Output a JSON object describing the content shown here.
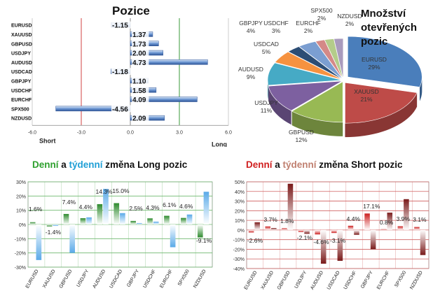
{
  "chart_data": [
    {
      "type": "bar",
      "orientation": "horizontal",
      "title": "Pozice",
      "categories": [
        "EURUSD",
        "XAUUSD",
        "GBPUSD",
        "USDJPY",
        "AUDUSD",
        "USDCAD",
        "GBPJPY",
        "USDCHF",
        "EURCHF",
        "SPX500",
        "NZDUSD"
      ],
      "values": [
        -1.15,
        1.37,
        1.73,
        2.0,
        4.73,
        -1.18,
        1.1,
        1.58,
        4.09,
        -4.56,
        2.09
      ],
      "value_labels": [
        "-1.15",
        "1.37",
        "1.73",
        "2.00",
        "4.73",
        "-1.18",
        "1.10",
        "1.58",
        "4.09",
        "-4.56",
        "2.09"
      ],
      "xlim": [
        -6,
        6
      ],
      "xticks": [
        "-6.0",
        "-3.0",
        "0.0",
        "3.0",
        "6.0"
      ],
      "xtick_values": [
        -6,
        -3,
        0,
        3,
        6
      ],
      "left_label": "Short",
      "right_label": "Long",
      "colors": {
        "bar": "#5b86c8",
        "bar_dark": "#2f5597",
        "short_line": "#d04040",
        "long_line": "#3a9a3a"
      }
    },
    {
      "type": "pie",
      "title_lines": [
        "Množství",
        "otevřených",
        "pozic"
      ],
      "labels": [
        "EURUSD",
        "XAUUSD",
        "GBPUSD",
        "USDJPY",
        "AUDUSD",
        "USDCAD",
        "USDCHF",
        "GBPJPY",
        "EURCHF",
        "SPX500",
        "NZDUSD"
      ],
      "values": [
        29,
        21,
        12,
        11,
        9,
        5,
        3,
        4,
        2,
        2,
        2
      ],
      "label_text": [
        "29%",
        "21%",
        "12%",
        "11%",
        "9%",
        "5%",
        "3%",
        "4%",
        "2%",
        "2%",
        "2%"
      ],
      "colors": [
        "#4a7ebb",
        "#be4b48",
        "#98b954",
        "#7d60a0",
        "#46aac5",
        "#f69240",
        "#2c4d75",
        "#7b9ed1",
        "#d48987",
        "#b4cc8a",
        "#a99bbd"
      ]
    },
    {
      "type": "bar",
      "title_parts": [
        {
          "text": "Denní",
          "color": "#2ea02e"
        },
        {
          "text": " a ",
          "color": "#111111"
        },
        {
          "text": "týdenní",
          "color": "#1f9fd6"
        },
        {
          "text": " změna Long pozic",
          "color": "#111111"
        }
      ],
      "categories": [
        "EURUSD",
        "XAUUSD",
        "GBPUSD",
        "USDJPY",
        "AUDUSD",
        "USDCAD",
        "GBPJPY",
        "USDCHF",
        "EURCHF",
        "SPX500",
        "NZDUSD"
      ],
      "series": [
        {
          "name": "Denní",
          "values": [
            1.6,
            -1.4,
            7.4,
            4.4,
            14.3,
            15.0,
            2.5,
            4.3,
            6.1,
            4.6,
            -9.1
          ]
        },
        {
          "name": "Týdenní",
          "values": [
            -25,
            -1,
            -20,
            5,
            25,
            8,
            1,
            2,
            -16,
            7,
            23
          ]
        }
      ],
      "value_labels": [
        "1.6%",
        "-1.4%",
        "7.4%",
        "4.4%",
        "14.3%",
        "15.0%",
        "2.5%",
        "4.3%",
        "6.1%",
        "4.6%",
        "-9.1%"
      ],
      "ylim": [
        -30,
        30
      ],
      "yticks": [
        "-30%",
        "-20%",
        "-10%",
        "0%",
        "10%",
        "20%",
        "30%"
      ],
      "ytick_values": [
        -30,
        -20,
        -10,
        0,
        10,
        20,
        30
      ],
      "colors": {
        "daily": "#2e8b2e",
        "weekly": "#5aaae8",
        "grid": "#6fb86f"
      }
    },
    {
      "type": "bar",
      "title_parts": [
        {
          "text": "Denní",
          "color": "#d02020"
        },
        {
          "text": " a ",
          "color": "#111111"
        },
        {
          "text": "týdenní",
          "color": "#c08070"
        },
        {
          "text": " změna Short pozic",
          "color": "#111111"
        }
      ],
      "categories": [
        "EURUSD",
        "XAUUSD",
        "GBPUSD",
        "USDJPY",
        "AUDUSD",
        "USDCAD",
        "USDCHF",
        "GBPJPY",
        "EURCHF",
        "SPX500",
        "NZDUSD"
      ],
      "series": [
        {
          "name": "Denní",
          "values": [
            -2.6,
            3.7,
            1.8,
            -2.1,
            -4.6,
            -3.1,
            4.4,
            17.1,
            0.8,
            3.9,
            3.1
          ]
        },
        {
          "name": "Týdenní",
          "values": [
            8,
            2,
            48,
            -4,
            -35,
            -32,
            -5,
            -20,
            18,
            32,
            -26
          ]
        }
      ],
      "value_labels": [
        "-2.6%",
        "3.7%",
        "1.8%",
        "-2.1%",
        "-4.6%",
        "-3.1%",
        "4.4%",
        "17.1%",
        "0.8%",
        "3.9%",
        "3.1%"
      ],
      "ylim": [
        -40,
        50
      ],
      "yticks": [
        "-40%",
        "-30%",
        "-20%",
        "-10%",
        "0%",
        "10%",
        "20%",
        "30%",
        "40%",
        "50%"
      ],
      "ytick_values": [
        -40,
        -30,
        -20,
        -10,
        0,
        10,
        20,
        30,
        40,
        50
      ],
      "colors": {
        "daily": "#cc1f1f",
        "weekly": "#7a1a1a",
        "grid": "#d06060"
      }
    }
  ]
}
